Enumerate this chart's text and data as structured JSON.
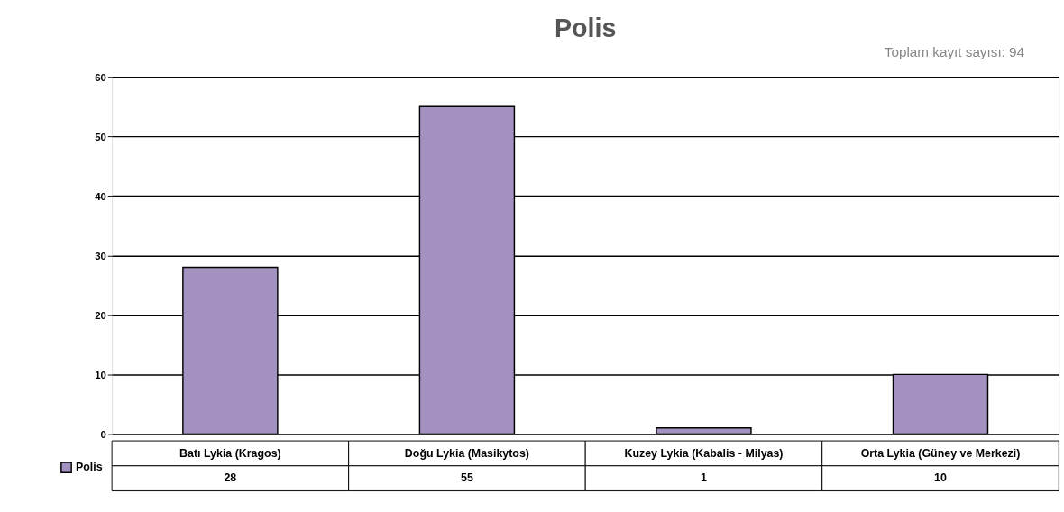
{
  "chart_data": {
    "type": "bar",
    "title": "Polis",
    "annotations": [
      "Toplam kayıt sayısı: 94"
    ],
    "categories": [
      "Batı Lykia (Kragos)",
      "Doğu Lykia (Masikytos)",
      "Kuzey Lykia (Kabalis - Milyas)",
      "Orta Lykia (Güney ve Merkezi)"
    ],
    "series": [
      {
        "name": "Polis",
        "color": "#a391c0",
        "values": [
          28,
          55,
          1,
          10
        ]
      }
    ],
    "ylim": [
      0,
      60
    ],
    "yticks": [
      0,
      10,
      20,
      30,
      40,
      50,
      60
    ],
    "grid": "y",
    "legend": "bottom left",
    "data_labels": true
  }
}
